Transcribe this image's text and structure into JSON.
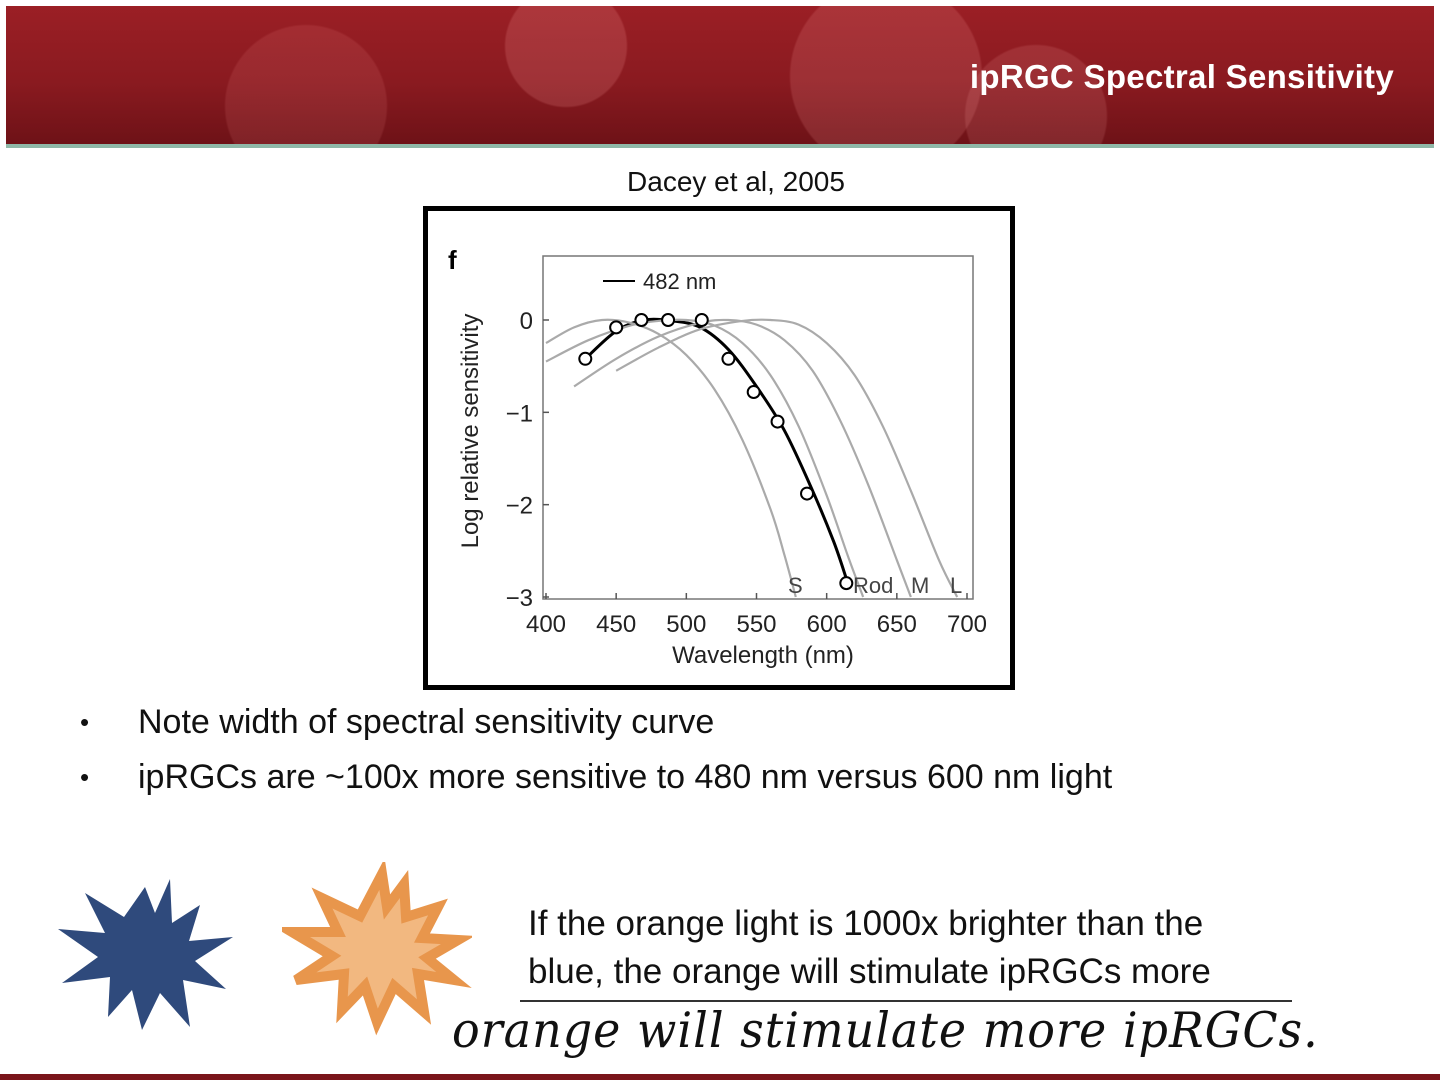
{
  "header": {
    "title": "ipRGC Spectral Sensitivity"
  },
  "figure": {
    "citation": "Dacey et al, 2005",
    "panel_label": "f"
  },
  "chart_data": {
    "type": "line",
    "legend": "482 nm",
    "xlabel": "Wavelength (nm)",
    "ylabel": "Log relative sensitivity",
    "xlim": [
      400,
      710
    ],
    "ylim": [
      -3,
      0.6
    ],
    "xticks": [
      400,
      450,
      500,
      550,
      600,
      650,
      700
    ],
    "yticks": [
      {
        "value": 0,
        "label": "0"
      },
      {
        "value": -1,
        "label": "−1"
      },
      {
        "value": -2,
        "label": "−2"
      },
      {
        "value": -3,
        "label": "−3"
      }
    ],
    "grid": false,
    "series": [
      {
        "role": "ipRGC fit",
        "color": "#000000",
        "x": [
          428,
          450,
          470,
          490,
          510,
          530,
          550,
          570,
          590,
          605,
          614
        ],
        "y": [
          -0.42,
          -0.12,
          0.0,
          -0.01,
          -0.08,
          -0.32,
          -0.72,
          -1.2,
          -1.85,
          -2.4,
          -2.8
        ]
      },
      {
        "role": "data points",
        "color": "#000000",
        "marker": "circle",
        "x": [
          428,
          450,
          468,
          487,
          511,
          530,
          548,
          565,
          586,
          614
        ],
        "y": [
          -0.42,
          -0.08,
          0.0,
          0.0,
          0.0,
          -0.42,
          -0.78,
          -1.1,
          -1.88,
          -2.85
        ]
      },
      {
        "name": "S",
        "color": "#aaaaaa",
        "x": [
          400,
          420,
          440,
          460,
          480,
          500,
          520,
          540,
          560,
          570,
          578
        ],
        "y": [
          -0.25,
          -0.08,
          0.0,
          -0.03,
          -0.15,
          -0.38,
          -0.75,
          -1.3,
          -2.05,
          -2.55,
          -3.0
        ]
      },
      {
        "name": "Rod",
        "color": "#aaaaaa",
        "x": [
          400,
          430,
          460,
          480,
          500,
          520,
          540,
          560,
          580,
          600,
          615,
          626
        ],
        "y": [
          -0.45,
          -0.22,
          -0.06,
          -0.01,
          0.0,
          -0.06,
          -0.25,
          -0.6,
          -1.15,
          -1.9,
          -2.55,
          -3.0
        ]
      },
      {
        "name": "M",
        "color": "#aaaaaa",
        "x": [
          420,
          450,
          480,
          510,
          530,
          550,
          570,
          590,
          610,
          630,
          650,
          660
        ],
        "y": [
          -0.72,
          -0.42,
          -0.18,
          -0.03,
          0.0,
          -0.05,
          -0.22,
          -0.55,
          -1.1,
          -1.8,
          -2.6,
          -3.0
        ]
      },
      {
        "name": "L",
        "color": "#aaaaaa",
        "x": [
          450,
          480,
          510,
          540,
          560,
          580,
          600,
          620,
          640,
          660,
          680,
          693
        ],
        "y": [
          -0.55,
          -0.3,
          -0.1,
          -0.01,
          0.0,
          -0.05,
          -0.25,
          -0.6,
          -1.15,
          -1.85,
          -2.6,
          -3.0
        ]
      }
    ]
  },
  "bullets": [
    "Note width of spectral sensitivity curve",
    "ipRGCs are ~100x more sensitive to 480 nm versus 600 nm light"
  ],
  "stars": [
    {
      "name": "blue-star",
      "fill": "#2f4a7c"
    },
    {
      "name": "orange-star",
      "fill": "#f2b880",
      "stroke": "#e8964c"
    }
  ],
  "caption": {
    "line1": "If the orange light is 1000x brighter than the",
    "line2": "blue, the orange will stimulate ipRGCs more"
  },
  "handwritten_note": "orange will stimulate more ipRGCs."
}
